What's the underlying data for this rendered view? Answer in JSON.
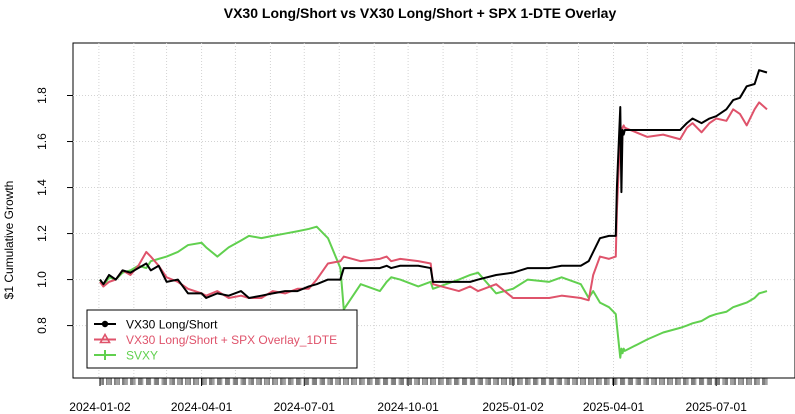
{
  "chart_data": {
    "type": "line",
    "title": "VX30 Long/Short vs VX30 Long/Short + SPX 1-DTE Overlay",
    "xlabel": "",
    "ylabel": "$1 Cumulative Growth",
    "ylim": [
      0.62,
      1.95
    ],
    "y_ticks": [
      0.8,
      1.0,
      1.2,
      1.4,
      1.6,
      1.8
    ],
    "y_tick_labels": [
      "0.8",
      "1.0",
      "1.2",
      "1.4",
      "1.6",
      "1.8"
    ],
    "x_range": [
      "2024-01-02",
      "2025-08-15"
    ],
    "x_ticks": [
      "2024-01-02",
      "2024-04-01",
      "2024-07-01",
      "2024-10-01",
      "2025-01-02",
      "2025-04-01",
      "2025-07-01"
    ],
    "x_tick_labels": [
      "2024-01-02",
      "2024-04-01",
      "2024-07-01",
      "2024-10-01",
      "2025-01-02",
      "2025-04-01",
      "2025-07-01"
    ],
    "grid": true,
    "legend_position": "bottom-left",
    "series": [
      {
        "name": "VX30 Long/Short",
        "color": "#000000",
        "marker": "circle",
        "points": [
          [
            "2024-01-02",
            1.0
          ],
          [
            "2024-01-05",
            0.98
          ],
          [
            "2024-01-10",
            1.02
          ],
          [
            "2024-01-16",
            1.0
          ],
          [
            "2024-01-22",
            1.04
          ],
          [
            "2024-01-29",
            1.03
          ],
          [
            "2024-02-05",
            1.05
          ],
          [
            "2024-02-12",
            1.07
          ],
          [
            "2024-02-16",
            1.04
          ],
          [
            "2024-02-23",
            1.06
          ],
          [
            "2024-03-01",
            0.99
          ],
          [
            "2024-03-11",
            1.0
          ],
          [
            "2024-03-20",
            0.94
          ],
          [
            "2024-04-01",
            0.94
          ],
          [
            "2024-04-05",
            0.92
          ],
          [
            "2024-04-15",
            0.94
          ],
          [
            "2024-04-25",
            0.93
          ],
          [
            "2024-05-06",
            0.95
          ],
          [
            "2024-05-13",
            0.92
          ],
          [
            "2024-05-24",
            0.93
          ],
          [
            "2024-06-03",
            0.94
          ],
          [
            "2024-06-14",
            0.95
          ],
          [
            "2024-06-25",
            0.95
          ],
          [
            "2024-07-05",
            0.97
          ],
          [
            "2024-07-12",
            0.98
          ],
          [
            "2024-07-22",
            1.0
          ],
          [
            "2024-08-02",
            1.0
          ],
          [
            "2024-08-05",
            1.05
          ],
          [
            "2024-08-20",
            1.05
          ],
          [
            "2024-09-06",
            1.05
          ],
          [
            "2024-09-12",
            1.06
          ],
          [
            "2024-09-16",
            1.05
          ],
          [
            "2024-09-24",
            1.06
          ],
          [
            "2024-10-10",
            1.06
          ],
          [
            "2024-10-21",
            1.05
          ],
          [
            "2024-10-23",
            0.99
          ],
          [
            "2024-11-15",
            0.99
          ],
          [
            "2024-11-25",
            0.99
          ],
          [
            "2024-12-02",
            1.0
          ],
          [
            "2024-12-18",
            1.02
          ],
          [
            "2025-01-02",
            1.03
          ],
          [
            "2025-01-15",
            1.05
          ],
          [
            "2025-02-03",
            1.05
          ],
          [
            "2025-02-14",
            1.06
          ],
          [
            "2025-03-03",
            1.06
          ],
          [
            "2025-03-10",
            1.08
          ],
          [
            "2025-03-14",
            1.12
          ],
          [
            "2025-03-20",
            1.18
          ],
          [
            "2025-03-28",
            1.19
          ],
          [
            "2025-04-03",
            1.19
          ],
          [
            "2025-04-04",
            1.4
          ],
          [
            "2025-04-07",
            1.75
          ],
          [
            "2025-04-08",
            1.38
          ],
          [
            "2025-04-09",
            1.65
          ],
          [
            "2025-04-10",
            1.63
          ],
          [
            "2025-04-11",
            1.65
          ],
          [
            "2025-05-01",
            1.65
          ],
          [
            "2025-05-15",
            1.65
          ],
          [
            "2025-05-30",
            1.65
          ],
          [
            "2025-06-05",
            1.68
          ],
          [
            "2025-06-10",
            1.7
          ],
          [
            "2025-06-18",
            1.68
          ],
          [
            "2025-06-25",
            1.7
          ],
          [
            "2025-07-01",
            1.71
          ],
          [
            "2025-07-10",
            1.74
          ],
          [
            "2025-07-16",
            1.78
          ],
          [
            "2025-07-22",
            1.79
          ],
          [
            "2025-07-28",
            1.84
          ],
          [
            "2025-08-04",
            1.85
          ],
          [
            "2025-08-08",
            1.91
          ],
          [
            "2025-08-15",
            1.9
          ]
        ]
      },
      {
        "name": "VX30 Long/Short + SPX Overlay_1DTE",
        "color": "#DF536B",
        "marker": "triangle",
        "points": [
          [
            "2024-01-02",
            0.99
          ],
          [
            "2024-01-05",
            0.97
          ],
          [
            "2024-01-10",
            0.99
          ],
          [
            "2024-01-16",
            1.0
          ],
          [
            "2024-01-22",
            1.04
          ],
          [
            "2024-01-29",
            1.02
          ],
          [
            "2024-02-05",
            1.06
          ],
          [
            "2024-02-12",
            1.12
          ],
          [
            "2024-02-16",
            1.1
          ],
          [
            "2024-02-23",
            1.06
          ],
          [
            "2024-03-01",
            1.01
          ],
          [
            "2024-03-11",
            0.99
          ],
          [
            "2024-03-20",
            0.96
          ],
          [
            "2024-04-01",
            0.94
          ],
          [
            "2024-04-05",
            0.93
          ],
          [
            "2024-04-15",
            0.95
          ],
          [
            "2024-04-25",
            0.92
          ],
          [
            "2024-05-06",
            0.93
          ],
          [
            "2024-05-13",
            0.92
          ],
          [
            "2024-05-24",
            0.92
          ],
          [
            "2024-06-03",
            0.95
          ],
          [
            "2024-06-14",
            0.94
          ],
          [
            "2024-06-25",
            0.96
          ],
          [
            "2024-07-05",
            0.96
          ],
          [
            "2024-07-12",
            1.0
          ],
          [
            "2024-07-22",
            1.07
          ],
          [
            "2024-08-02",
            1.08
          ],
          [
            "2024-08-05",
            1.1
          ],
          [
            "2024-08-20",
            1.08
          ],
          [
            "2024-09-06",
            1.09
          ],
          [
            "2024-09-12",
            1.1
          ],
          [
            "2024-09-16",
            1.08
          ],
          [
            "2024-09-24",
            1.09
          ],
          [
            "2024-10-10",
            1.08
          ],
          [
            "2024-10-21",
            1.07
          ],
          [
            "2024-10-23",
            0.98
          ],
          [
            "2024-11-15",
            0.95
          ],
          [
            "2024-11-25",
            0.97
          ],
          [
            "2024-12-02",
            0.95
          ],
          [
            "2024-12-18",
            0.98
          ],
          [
            "2025-01-02",
            0.92
          ],
          [
            "2025-01-15",
            0.92
          ],
          [
            "2025-02-03",
            0.92
          ],
          [
            "2025-02-14",
            0.93
          ],
          [
            "2025-03-03",
            0.92
          ],
          [
            "2025-03-10",
            0.91
          ],
          [
            "2025-03-14",
            1.02
          ],
          [
            "2025-03-20",
            1.1
          ],
          [
            "2025-03-28",
            1.09
          ],
          [
            "2025-04-03",
            1.1
          ],
          [
            "2025-04-04",
            1.3
          ],
          [
            "2025-04-07",
            1.64
          ],
          [
            "2025-04-08",
            1.5
          ],
          [
            "2025-04-09",
            1.66
          ],
          [
            "2025-04-10",
            1.67
          ],
          [
            "2025-04-11",
            1.66
          ],
          [
            "2025-05-01",
            1.62
          ],
          [
            "2025-05-15",
            1.63
          ],
          [
            "2025-05-30",
            1.61
          ],
          [
            "2025-06-05",
            1.66
          ],
          [
            "2025-06-10",
            1.68
          ],
          [
            "2025-06-18",
            1.64
          ],
          [
            "2025-06-25",
            1.68
          ],
          [
            "2025-07-01",
            1.7
          ],
          [
            "2025-07-10",
            1.69
          ],
          [
            "2025-07-16",
            1.74
          ],
          [
            "2025-07-22",
            1.72
          ],
          [
            "2025-07-28",
            1.67
          ],
          [
            "2025-08-04",
            1.74
          ],
          [
            "2025-08-08",
            1.77
          ],
          [
            "2025-08-15",
            1.74
          ]
        ]
      },
      {
        "name": "SVXY",
        "color": "#61D04F",
        "marker": "plus",
        "points": [
          [
            "2024-01-02",
            1.0
          ],
          [
            "2024-01-05",
            0.97
          ],
          [
            "2024-01-10",
            1.01
          ],
          [
            "2024-01-16",
            1.0
          ],
          [
            "2024-01-22",
            1.03
          ],
          [
            "2024-01-29",
            1.04
          ],
          [
            "2024-02-05",
            1.06
          ],
          [
            "2024-02-12",
            1.05
          ],
          [
            "2024-02-16",
            1.08
          ],
          [
            "2024-02-23",
            1.09
          ],
          [
            "2024-03-01",
            1.1
          ],
          [
            "2024-03-11",
            1.12
          ],
          [
            "2024-03-20",
            1.15
          ],
          [
            "2024-04-01",
            1.16
          ],
          [
            "2024-04-05",
            1.14
          ],
          [
            "2024-04-15",
            1.1
          ],
          [
            "2024-04-25",
            1.14
          ],
          [
            "2024-05-06",
            1.17
          ],
          [
            "2024-05-13",
            1.19
          ],
          [
            "2024-05-24",
            1.18
          ],
          [
            "2024-06-03",
            1.19
          ],
          [
            "2024-06-14",
            1.2
          ],
          [
            "2024-06-25",
            1.21
          ],
          [
            "2024-07-05",
            1.22
          ],
          [
            "2024-07-12",
            1.23
          ],
          [
            "2024-07-22",
            1.18
          ],
          [
            "2024-08-02",
            1.05
          ],
          [
            "2024-08-05",
            0.87
          ],
          [
            "2024-08-20",
            0.98
          ],
          [
            "2024-09-06",
            0.95
          ],
          [
            "2024-09-12",
            0.99
          ],
          [
            "2024-09-16",
            1.01
          ],
          [
            "2024-09-24",
            1.0
          ],
          [
            "2024-10-10",
            0.97
          ],
          [
            "2024-10-21",
            0.99
          ],
          [
            "2024-10-23",
            0.96
          ],
          [
            "2024-11-15",
            1.0
          ],
          [
            "2024-11-25",
            1.02
          ],
          [
            "2024-12-02",
            1.03
          ],
          [
            "2024-12-18",
            0.94
          ],
          [
            "2025-01-02",
            0.96
          ],
          [
            "2025-01-15",
            1.0
          ],
          [
            "2025-02-03",
            0.99
          ],
          [
            "2025-02-14",
            1.01
          ],
          [
            "2025-03-03",
            0.98
          ],
          [
            "2025-03-10",
            0.92
          ],
          [
            "2025-03-14",
            0.95
          ],
          [
            "2025-03-20",
            0.9
          ],
          [
            "2025-03-28",
            0.88
          ],
          [
            "2025-04-03",
            0.85
          ],
          [
            "2025-04-04",
            0.8
          ],
          [
            "2025-04-07",
            0.66
          ],
          [
            "2025-04-08",
            0.7
          ],
          [
            "2025-04-09",
            0.68
          ],
          [
            "2025-04-10",
            0.7
          ],
          [
            "2025-04-11",
            0.69
          ],
          [
            "2025-05-01",
            0.74
          ],
          [
            "2025-05-15",
            0.77
          ],
          [
            "2025-05-30",
            0.79
          ],
          [
            "2025-06-05",
            0.8
          ],
          [
            "2025-06-10",
            0.81
          ],
          [
            "2025-06-18",
            0.82
          ],
          [
            "2025-06-25",
            0.84
          ],
          [
            "2025-07-01",
            0.85
          ],
          [
            "2025-07-10",
            0.86
          ],
          [
            "2025-07-16",
            0.88
          ],
          [
            "2025-07-22",
            0.89
          ],
          [
            "2025-07-28",
            0.9
          ],
          [
            "2025-08-04",
            0.92
          ],
          [
            "2025-08-08",
            0.94
          ],
          [
            "2025-08-15",
            0.95
          ]
        ]
      }
    ]
  }
}
